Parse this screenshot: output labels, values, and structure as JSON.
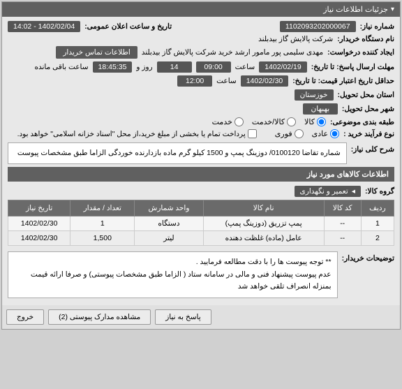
{
  "header": {
    "title": "جزئیات اطلاعات نیاز",
    "arrow": "▾"
  },
  "fields": {
    "need_no_label": "شماره نیاز:",
    "need_no": "1102093202000067",
    "announce_label": "تاریخ و ساعت اعلان عمومی:",
    "announce_val": "1402/02/04 - 14:02",
    "buyer_org_label": "نام دستگاه خریدار:",
    "buyer_org": "شرکت پالایش گاز بیدبلند",
    "requester_label": "ایجاد کننده درخواست:",
    "requester": "مهدی سلیمی پور مامور ارشد خرید شرکت پالایش گاز بیدبلند",
    "contact_btn": "اطلاعات تماس خریدار",
    "reply_deadline_label": "مهلت ارسال پاسخ: تا تاریخ:",
    "reply_date": "1402/02/19",
    "saat": "ساعت",
    "reply_time": "09:00",
    "days": "14",
    "rooz_va": "روز و",
    "countdown": "18:45:35",
    "remain": "ساعت باقی مانده",
    "price_valid_label": "حداقل تاریخ اعتبار قیمت: تا تاریخ:",
    "price_date": "1402/02/30",
    "price_time": "12:00",
    "province_label": "استان محل تحویل:",
    "province": "خوزستان",
    "city_label": "شهر محل تحویل:",
    "city": "بهبهان",
    "category_label": "طبقه بندی موضوعی:",
    "cat_kala": "کالا",
    "cat_service": "کالا/خدمت",
    "cat_khadamat": "خدمت",
    "process_label": "نوع فرآیند خرید :",
    "proc_normal": "عادی",
    "proc_urgent": "فوری",
    "payment_note": "پرداخت تمام یا بخشی از مبلغ خرید،از محل \"اسناد خزانه اسلامی\" خواهد بود.",
    "desc_label": "شرح کلی نیاز:",
    "desc_text": "شماره تقاضا   0100120/  دوزینگ پمپ و  1500 کیلو گرم  ماده بازدارنده خوردگی   الزاما طبق مشخصات پیوست",
    "items_header": "اطلاعات کالاهای مورد نیاز",
    "group_label": "گروه کالا:",
    "group_val": "تعمیر و نگهداری",
    "group_arrow": "◂",
    "notes_label": "توضیحات خریدار:",
    "notes_l1": "** توجه پیوست ها  را با دقت مطالعه فرمایید .",
    "notes_l2": "عدم پیوست پیشنهاد فنی و مالی در سامانه ستاد ( الزاما طبق مشخصات پیوستی)  و صرفا ارائه قیمت بمنزله انصراف تلقی خواهد شد"
  },
  "table": {
    "headers": {
      "row": "ردیف",
      "code": "کد کالا",
      "name": "نام کالا",
      "unit": "واحد شمارش",
      "qty": "تعداد / مقدار",
      "date": "تاریخ نیاز"
    },
    "rows": [
      {
        "n": "1",
        "code": "--",
        "name": "پمپ تزریق (دوزینگ پمپ)",
        "unit": "دستگاه",
        "qty": "1",
        "date": "1402/02/30"
      },
      {
        "n": "2",
        "code": "--",
        "name": "عامل (ماده) غلظت دهنده",
        "unit": "لیتر",
        "qty": "1,500",
        "date": "1402/02/30"
      }
    ]
  },
  "footer": {
    "reply": "پاسخ به نیاز",
    "attachments": "مشاهده مدارک پیوستی (2)",
    "close": "خروج"
  }
}
